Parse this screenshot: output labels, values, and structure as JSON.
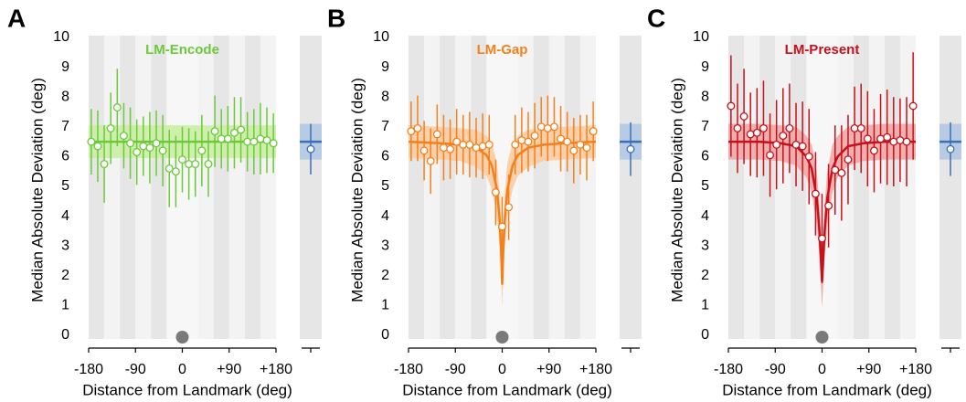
{
  "chart_data": [
    {
      "type": "errorbar",
      "panel_label": "A",
      "title": "LM-Encode",
      "color": "#6cc93a",
      "band_color": "#c8ee9f",
      "ylabel": "Median Absolute Deviation (deg)",
      "xlabel": "Distance from Landmark (deg)",
      "xlim": [
        -180,
        180
      ],
      "xticks": [
        -180,
        -90,
        0,
        {
          "value": 90,
          "label": "+90"
        },
        {
          "value": 180,
          "label": "+180"
        }
      ],
      "ylim": [
        0,
        10
      ],
      "yticks": [
        0,
        1,
        2,
        3,
        4,
        5,
        6,
        7,
        8,
        9,
        10
      ],
      "points": {
        "x": [
          -175,
          -162.5,
          -150,
          -137.5,
          -125,
          -112.5,
          -100,
          -87.5,
          -75,
          -62.5,
          -50,
          -37.5,
          -25,
          -12.5,
          0,
          12.5,
          25,
          37.5,
          50,
          62.5,
          75,
          87.5,
          100,
          112.5,
          125,
          137.5,
          150,
          162.5,
          175
        ],
        "values": [
          6.5,
          6.35,
          5.75,
          6.95,
          7.65,
          6.7,
          6.45,
          6.15,
          6.35,
          6.3,
          6.45,
          6.2,
          5.6,
          5.5,
          5.9,
          5.75,
          5.75,
          6.2,
          5.75,
          6.85,
          6.6,
          6.6,
          6.8,
          6.9,
          6.5,
          6.5,
          6.6,
          6.55,
          6.45
        ],
        "errors": [
          1.1,
          1.2,
          1.3,
          1.2,
          1.3,
          1.1,
          1.2,
          1.1,
          1.0,
          1.2,
          1.1,
          1.2,
          1.3,
          1.2,
          1.1,
          1.2,
          1.1,
          1.2,
          1.1,
          1.2,
          1.0,
          1.1,
          1.2,
          1.1,
          1.0,
          1.1,
          1.2,
          1.1,
          1.0
        ]
      },
      "fit": {
        "x": [
          -180,
          -90,
          0,
          90,
          180
        ],
        "values": [
          6.5,
          6.5,
          6.5,
          6.5,
          6.5
        ],
        "lower": [
          5.95,
          5.95,
          5.95,
          5.95,
          5.95
        ],
        "upper": [
          7.05,
          7.05,
          7.05,
          7.05,
          7.05
        ]
      },
      "control": {
        "value": 6.25,
        "error": 0.85,
        "fit": 6.5,
        "lower": 5.9,
        "upper": 7.1,
        "color": "#3b6fb6",
        "band_color": "#b7cbe4"
      }
    },
    {
      "type": "errorbar",
      "panel_label": "B",
      "title": "LM-Gap",
      "color": "#f5801a",
      "band_color": "#fbc99c",
      "ylabel": "Median Absolute Deviation (deg)",
      "xlabel": "Distance from Landmark (deg)",
      "xlim": [
        -180,
        180
      ],
      "xticks": [
        -180,
        -90,
        0,
        {
          "value": 90,
          "label": "+90"
        },
        {
          "value": 180,
          "label": "+180"
        }
      ],
      "ylim": [
        0,
        10
      ],
      "yticks": [
        0,
        1,
        2,
        3,
        4,
        5,
        6,
        7,
        8,
        9,
        10
      ],
      "points": {
        "x": [
          -175,
          -162.5,
          -150,
          -137.5,
          -125,
          -112.5,
          -100,
          -87.5,
          -75,
          -62.5,
          -50,
          -37.5,
          -25,
          -12.5,
          0,
          12.5,
          25,
          37.5,
          50,
          62.5,
          75,
          87.5,
          100,
          112.5,
          125,
          137.5,
          150,
          162.5,
          175
        ],
        "values": [
          6.85,
          6.95,
          6.2,
          5.85,
          6.75,
          6.3,
          6.25,
          6.5,
          6.4,
          6.4,
          6.3,
          6.35,
          6.4,
          4.8,
          3.65,
          4.3,
          6.4,
          6.55,
          6.5,
          6.7,
          7.0,
          6.95,
          7.0,
          6.6,
          6.5,
          6.2,
          6.4,
          6.3,
          6.85
        ],
        "errors": [
          1.0,
          1.1,
          1.0,
          1.1,
          1.0,
          1.1,
          1.0,
          1.1,
          1.0,
          1.1,
          1.0,
          1.1,
          1.0,
          1.1,
          1.0,
          1.1,
          1.0,
          1.1,
          1.0,
          1.1,
          1.0,
          1.1,
          1.0,
          1.1,
          1.0,
          1.1,
          1.0,
          1.1,
          1.0
        ]
      },
      "fit": {
        "x": [
          -180,
          -120,
          -80,
          -50,
          -30,
          -20,
          -10,
          -5,
          -2,
          0,
          2,
          5,
          10,
          20,
          30,
          50,
          80,
          120,
          180
        ],
        "values": [
          6.5,
          6.45,
          6.4,
          6.3,
          6.05,
          5.7,
          4.9,
          3.9,
          2.8,
          1.7,
          2.8,
          3.9,
          4.9,
          5.7,
          6.05,
          6.3,
          6.4,
          6.45,
          6.5
        ],
        "lower": [
          5.95,
          5.9,
          5.85,
          5.65,
          5.35,
          4.9,
          4.0,
          3.0,
          2.0,
          0.9,
          2.0,
          3.0,
          4.0,
          4.9,
          5.35,
          5.65,
          5.85,
          5.9,
          5.95
        ],
        "upper": [
          7.05,
          7.0,
          6.95,
          6.9,
          6.7,
          6.45,
          5.8,
          4.8,
          3.6,
          2.5,
          3.6,
          4.8,
          5.8,
          6.45,
          6.7,
          6.9,
          6.95,
          7.0,
          7.05
        ]
      },
      "control": {
        "value": 6.25,
        "error": 0.9,
        "fit": 6.5,
        "lower": 5.9,
        "upper": 7.1,
        "color": "#3b6fb6",
        "band_color": "#b7cbe4"
      }
    },
    {
      "type": "errorbar",
      "panel_label": "C",
      "title": "LM-Present",
      "color": "#c8101a",
      "band_color": "#eea3a3",
      "ylabel": "Median Absolute Deviation (deg)",
      "xlabel": "Distance from Landmark (deg)",
      "xlim": [
        -180,
        180
      ],
      "xticks": [
        -180,
        -90,
        0,
        {
          "value": 90,
          "label": "+90"
        },
        {
          "value": 180,
          "label": "+180"
        }
      ],
      "ylim": [
        0,
        10
      ],
      "yticks": [
        0,
        1,
        2,
        3,
        4,
        5,
        6,
        7,
        8,
        9,
        10
      ],
      "points": {
        "x": [
          -175,
          -162.5,
          -150,
          -137.5,
          -125,
          -112.5,
          -100,
          -87.5,
          -75,
          -62.5,
          -50,
          -37.5,
          -25,
          -12.5,
          0,
          12.5,
          25,
          37.5,
          50,
          62.5,
          75,
          87.5,
          100,
          112.5,
          125,
          137.5,
          150,
          162.5,
          175
        ],
        "values": [
          7.7,
          6.95,
          7.35,
          6.75,
          6.8,
          6.95,
          6.05,
          6.4,
          6.7,
          6.95,
          6.4,
          6.35,
          6.0,
          4.75,
          3.25,
          4.35,
          5.55,
          5.45,
          5.9,
          6.95,
          6.95,
          6.6,
          6.2,
          6.6,
          6.65,
          6.5,
          6.55,
          6.5,
          7.7
        ],
        "errors": [
          1.7,
          1.5,
          1.6,
          1.4,
          1.5,
          1.6,
          1.4,
          1.5,
          1.6,
          1.5,
          1.4,
          1.5,
          1.6,
          1.4,
          1.5,
          1.4,
          1.5,
          1.6,
          1.5,
          1.4,
          1.5,
          1.6,
          1.4,
          1.5,
          1.6,
          1.5,
          1.4,
          1.5,
          1.8
        ]
      },
      "fit": {
        "x": [
          -180,
          -120,
          -80,
          -50,
          -30,
          -20,
          -10,
          -5,
          -2,
          0,
          2,
          5,
          10,
          20,
          30,
          50,
          80,
          120,
          180
        ],
        "values": [
          6.5,
          6.5,
          6.45,
          6.35,
          6.0,
          5.6,
          4.6,
          3.5,
          2.5,
          1.8,
          2.5,
          3.5,
          4.6,
          5.6,
          6.0,
          6.35,
          6.45,
          6.5,
          6.5
        ],
        "lower": [
          5.9,
          5.9,
          5.85,
          5.7,
          5.3,
          4.8,
          3.7,
          2.6,
          1.6,
          0.9,
          1.6,
          2.6,
          3.7,
          4.8,
          5.3,
          5.7,
          5.85,
          5.9,
          5.9
        ],
        "upper": [
          7.1,
          7.1,
          7.05,
          7.0,
          6.7,
          6.4,
          5.5,
          4.4,
          3.4,
          2.7,
          3.4,
          4.4,
          5.5,
          6.4,
          6.7,
          7.0,
          7.05,
          7.1,
          7.1
        ]
      },
      "control": {
        "value": 6.25,
        "error": 0.9,
        "fit": 6.5,
        "lower": 5.9,
        "upper": 7.1,
        "color": "#3b6fb6",
        "band_color": "#b7cbe4"
      }
    }
  ]
}
